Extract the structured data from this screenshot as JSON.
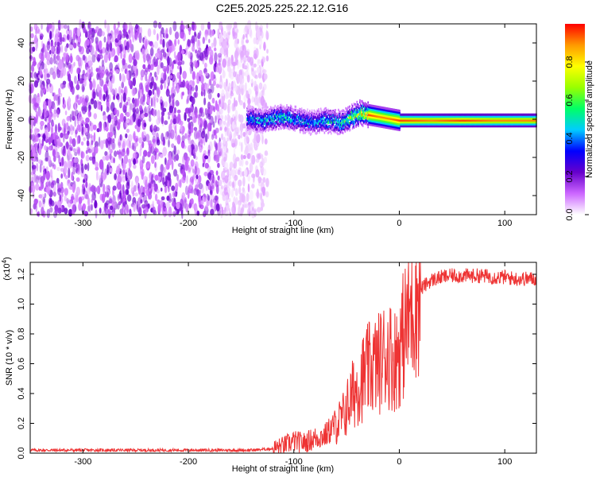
{
  "title": "C2E5.2025.225.22.12.G16",
  "chart_data": [
    {
      "type": "heatmap",
      "xlabel": "Height of straight line (km)",
      "ylabel": "Frequency (Hz)",
      "xlim": [
        -350,
        130
      ],
      "ylim": [
        -50,
        50
      ],
      "x_ticks": [
        -300,
        -200,
        -100,
        0,
        100
      ],
      "y_ticks": [
        -40,
        -20,
        0,
        20,
        40
      ],
      "colorbar": {
        "label": "Normalized spectral amplitude",
        "range": [
          0,
          1
        ],
        "ticks": [
          "0.0",
          "0.2",
          "0.4",
          "0.6",
          "0.8"
        ],
        "colors": [
          "#ffffff",
          "#cc66ff",
          "#6600cc",
          "#0000ff",
          "#00ccff",
          "#00ff66",
          "#99ff00",
          "#ffff00",
          "#ff9900",
          "#ff0000"
        ]
      },
      "description_regions": {
        "noise_band_x": [
          -350,
          -140
        ],
        "signal_track_x": [
          -150,
          130
        ],
        "signal_center_freq": 0
      },
      "signal_track": {
        "x": [
          -145,
          -130,
          -115,
          -100,
          -85,
          -70,
          -55,
          -45,
          -38,
          -30,
          -20,
          -10,
          0,
          30,
          60,
          90,
          130
        ],
        "freq": [
          1,
          0,
          2,
          1,
          -1,
          0,
          -1,
          2,
          4,
          3,
          2,
          1,
          0,
          0,
          0,
          0,
          0
        ],
        "amplitude": [
          0.5,
          0.55,
          0.6,
          0.55,
          0.5,
          0.55,
          0.6,
          0.8,
          0.85,
          0.95,
          0.9,
          0.9,
          0.95,
          0.9,
          0.95,
          0.9,
          0.9
        ]
      }
    },
    {
      "type": "line",
      "xlabel": "Height of straight line (km)",
      "ylabel": "SNR (10 * v/v)",
      "y_scale_label": "(x10",
      "y_scale_exp": "4",
      "xlim": [
        -350,
        130
      ],
      "ylim": [
        0,
        1.28
      ],
      "x_ticks": [
        -300,
        -200,
        -100,
        0,
        100
      ],
      "y_ticks": [
        "0.0",
        "0.2",
        "0.4",
        "0.6",
        "0.8",
        "1.0",
        "1.2"
      ],
      "line_color": "#ee3333",
      "series": [
        {
          "x": [
            -350,
            -300,
            -250,
            -200,
            -160,
            -140,
            -120,
            -110,
            -100,
            -90,
            -80,
            -70,
            -60,
            -55,
            -50,
            -45,
            -40,
            -35,
            -30,
            -25,
            -20,
            -15,
            -10,
            -5,
            0,
            5,
            10,
            15,
            20,
            30,
            40,
            50,
            60,
            70,
            80,
            90,
            100,
            110,
            120,
            130
          ],
          "values": [
            0.02,
            0.02,
            0.02,
            0.02,
            0.02,
            0.02,
            0.03,
            0.05,
            0.08,
            0.07,
            0.1,
            0.12,
            0.2,
            0.22,
            0.3,
            0.38,
            0.45,
            0.5,
            0.55,
            0.58,
            0.6,
            0.65,
            0.68,
            0.62,
            0.7,
            0.82,
            0.95,
            1.05,
            1.1,
            1.16,
            1.18,
            1.19,
            1.19,
            1.19,
            1.19,
            1.18,
            1.18,
            1.17,
            1.17,
            1.17
          ]
        }
      ]
    }
  ]
}
